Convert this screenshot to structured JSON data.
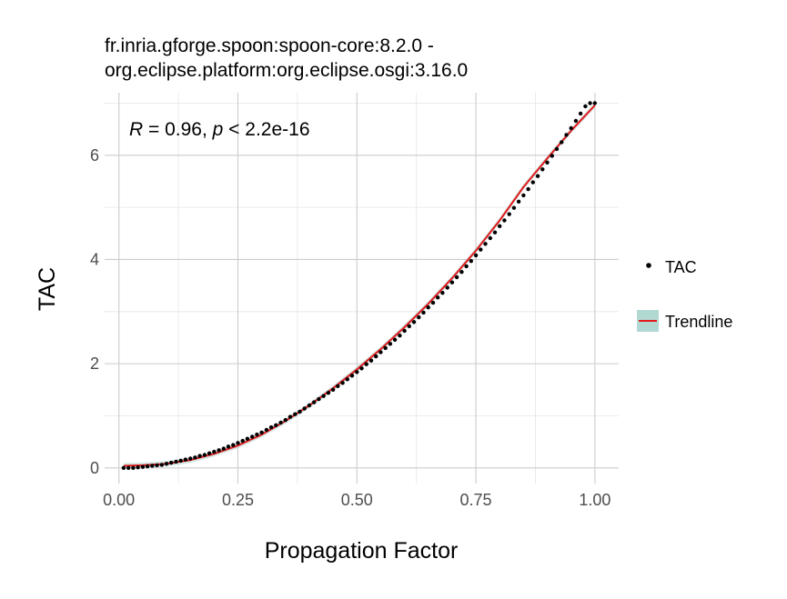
{
  "chart_data": {
    "type": "scatter",
    "title_lines": [
      "fr.inria.gforge.spoon:spoon-core:8.2.0 -",
      "org.eclipse.platform:org.eclipse.osgi:3.16.0"
    ],
    "annotation": {
      "r_label": "R",
      "r_text": " = 0.96, ",
      "p_label": "p",
      "p_text": " < 2.2e-16"
    },
    "xlabel": "Propagation Factor",
    "ylabel": "TAC",
    "xlim": [
      -0.03,
      1.05
    ],
    "ylim": [
      -0.3,
      7.2
    ],
    "x_ticks": [
      {
        "value": 0.0,
        "label": "0.00"
      },
      {
        "value": 0.25,
        "label": "0.25"
      },
      {
        "value": 0.5,
        "label": "0.50"
      },
      {
        "value": 0.75,
        "label": "0.75"
      },
      {
        "value": 1.0,
        "label": "1.00"
      }
    ],
    "y_ticks": [
      {
        "value": 0,
        "label": "0"
      },
      {
        "value": 2,
        "label": "2"
      },
      {
        "value": 4,
        "label": "4"
      },
      {
        "value": 6,
        "label": "6"
      }
    ],
    "grid": true,
    "legend_position": "right",
    "series": [
      {
        "name": "TAC",
        "kind": "points",
        "color": "#000000",
        "x": [
          0.01,
          0.02,
          0.03,
          0.04,
          0.05,
          0.06,
          0.07,
          0.08,
          0.09,
          0.1,
          0.11,
          0.12,
          0.13,
          0.14,
          0.15,
          0.16,
          0.17,
          0.18,
          0.19,
          0.2,
          0.21,
          0.22,
          0.23,
          0.24,
          0.25,
          0.26,
          0.27,
          0.28,
          0.29,
          0.3,
          0.31,
          0.32,
          0.33,
          0.34,
          0.35,
          0.36,
          0.37,
          0.38,
          0.39,
          0.4,
          0.41,
          0.42,
          0.43,
          0.44,
          0.45,
          0.46,
          0.47,
          0.48,
          0.49,
          0.5,
          0.51,
          0.52,
          0.53,
          0.54,
          0.55,
          0.56,
          0.57,
          0.58,
          0.59,
          0.6,
          0.61,
          0.62,
          0.63,
          0.64,
          0.65,
          0.66,
          0.67,
          0.68,
          0.69,
          0.7,
          0.71,
          0.72,
          0.73,
          0.74,
          0.75,
          0.76,
          0.77,
          0.78,
          0.79,
          0.8,
          0.81,
          0.82,
          0.83,
          0.84,
          0.85,
          0.86,
          0.87,
          0.88,
          0.89,
          0.9,
          0.91,
          0.92,
          0.93,
          0.94,
          0.95,
          0.96,
          0.97,
          0.98,
          0.99,
          1.0
        ],
        "y": [
          0.0,
          0.0,
          0.0,
          0.01,
          0.02,
          0.03,
          0.04,
          0.05,
          0.06,
          0.08,
          0.1,
          0.12,
          0.14,
          0.16,
          0.18,
          0.2,
          0.23,
          0.25,
          0.28,
          0.31,
          0.34,
          0.37,
          0.41,
          0.44,
          0.48,
          0.52,
          0.56,
          0.6,
          0.64,
          0.68,
          0.73,
          0.78,
          0.82,
          0.87,
          0.92,
          0.98,
          1.03,
          1.08,
          1.14,
          1.2,
          1.26,
          1.32,
          1.38,
          1.44,
          1.5,
          1.57,
          1.63,
          1.7,
          1.77,
          1.84,
          1.91,
          1.99,
          2.06,
          2.14,
          2.22,
          2.3,
          2.38,
          2.46,
          2.54,
          2.63,
          2.72,
          2.8,
          2.89,
          2.98,
          3.08,
          3.17,
          3.27,
          3.36,
          3.46,
          3.56,
          3.66,
          3.76,
          3.87,
          3.97,
          4.08,
          4.19,
          4.3,
          4.41,
          4.52,
          4.64,
          4.75,
          4.87,
          4.99,
          5.11,
          5.23,
          5.35,
          5.48,
          5.6,
          5.73,
          5.86,
          5.99,
          6.12,
          6.25,
          6.39,
          6.52,
          6.66,
          6.8,
          6.94,
          7.0,
          7.0
        ]
      },
      {
        "name": "Trendline",
        "kind": "line",
        "color": "#e41a1c",
        "band_color": "#b2d8d4",
        "x": [
          0.01,
          0.05,
          0.1,
          0.15,
          0.2,
          0.25,
          0.3,
          0.35,
          0.4,
          0.45,
          0.5,
          0.55,
          0.6,
          0.65,
          0.7,
          0.75,
          0.8,
          0.85,
          0.9,
          0.95,
          1.0
        ],
        "y": [
          0.04,
          0.05,
          0.08,
          0.15,
          0.27,
          0.43,
          0.64,
          0.9,
          1.2,
          1.53,
          1.89,
          2.28,
          2.7,
          3.15,
          3.64,
          4.17,
          4.75,
          5.39,
          5.94,
          6.47,
          6.96
        ]
      }
    ]
  }
}
